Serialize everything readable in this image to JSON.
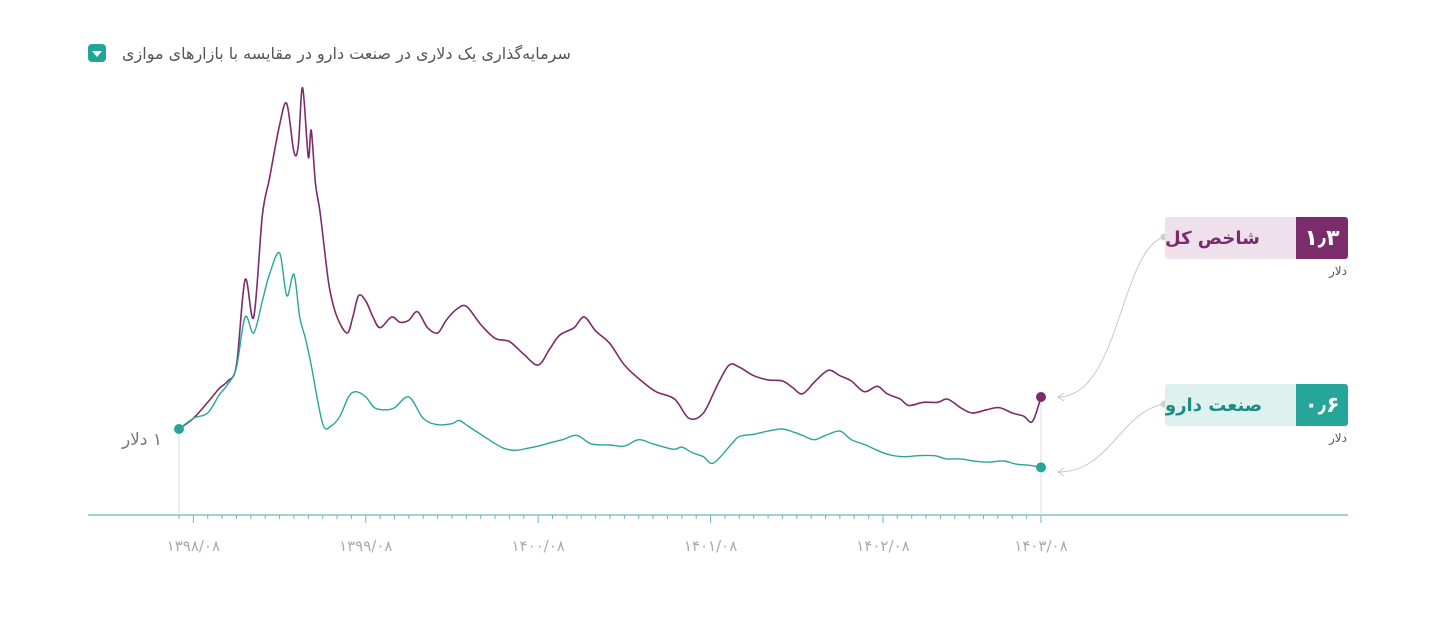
{
  "title": "سرمایه‌گذاری یک دلاری در صنعت دارو در مقایسه با بازارهای موازی",
  "start_label": "۱ دلار",
  "colors": {
    "index": "#7b2c6b",
    "pharma": "#26a69a",
    "index_bg": "#efe1eb",
    "pharma_bg": "#dff1ef",
    "axis": "#6cb8b4",
    "tick_text": "#aaaaaa"
  },
  "labels": [
    {
      "key": "index",
      "name": "شاخص کل",
      "value": "۱٫۳",
      "unit": "دلار"
    },
    {
      "key": "pharma",
      "name": "صنعت دارو",
      "value": "۰٫۶",
      "unit": "دلار"
    }
  ],
  "chart_data": {
    "type": "line",
    "x_ticks": [
      "۱۳۹۸/۰۸",
      "۱۳۹۹/۰۸",
      "۱۴۰۰/۰۸",
      "۱۴۰۱/۰۸",
      "۱۴۰۲/۰۸",
      "۱۴۰۳/۰۸"
    ],
    "x_range": [
      0,
      60
    ],
    "y_range": [
      0.4,
      4.3
    ],
    "series": [
      {
        "name": "شاخص کل",
        "color": "#7b2c6b",
        "x": [
          0,
          1,
          2,
          2.8,
          3.4,
          4,
          4.6,
          5.2,
          5.8,
          6.3,
          7,
          7.5,
          8,
          8.3,
          8.6,
          9,
          9.2,
          9.5,
          9.8,
          10.2,
          10.5,
          11,
          11.7,
          12.1,
          12.5,
          13,
          13.5,
          14,
          14.8,
          15.4,
          16,
          16.6,
          17.3,
          18,
          18.6,
          19.3,
          20,
          21,
          22,
          23,
          24,
          25,
          25.8,
          26.5,
          27.5,
          28.2,
          29,
          30,
          31,
          32.2,
          33.2,
          34.5,
          35.5,
          36.5,
          37.5,
          38.3,
          39,
          40,
          41,
          42,
          42.7,
          43.4,
          44.3,
          45.2,
          46,
          46.8,
          47.7,
          48.6,
          49.3,
          50.2,
          50.8,
          51.8,
          52.8,
          53.5,
          54.4,
          55.2,
          56.2,
          57.1,
          58,
          58.8,
          59.4,
          60
        ],
        "y": [
          1,
          1.1,
          1.25,
          1.38,
          1.45,
          1.6,
          2.4,
          2.05,
          3,
          3.35,
          3.85,
          4.05,
          3.6,
          3.65,
          4.2,
          3.55,
          3.8,
          3.3,
          3.05,
          2.6,
          2.3,
          2.05,
          1.9,
          2.05,
          2.25,
          2.2,
          2.05,
          1.95,
          2.05,
          2.0,
          2.02,
          2.1,
          1.95,
          1.9,
          2.02,
          2.12,
          2.15,
          1.98,
          1.85,
          1.82,
          1.7,
          1.6,
          1.75,
          1.88,
          1.95,
          2.05,
          1.92,
          1.8,
          1.6,
          1.45,
          1.35,
          1.28,
          1.1,
          1.15,
          1.42,
          1.6,
          1.58,
          1.5,
          1.46,
          1.45,
          1.39,
          1.33,
          1.45,
          1.55,
          1.5,
          1.45,
          1.35,
          1.4,
          1.33,
          1.28,
          1.22,
          1.25,
          1.25,
          1.28,
          1.2,
          1.15,
          1.18,
          1.2,
          1.15,
          1.12,
          1.07,
          1.3
        ]
      },
      {
        "name": "صنعت دارو",
        "color": "#26a69a",
        "x": [
          0,
          1,
          2,
          2.8,
          3.4,
          4,
          4.6,
          5.2,
          5.8,
          6.3,
          7,
          7.5,
          8,
          8.4,
          8.8,
          9.2,
          10,
          10.6,
          11.2,
          11.8,
          12.3,
          13,
          13.6,
          14.3,
          15,
          16,
          17,
          18,
          19,
          19.5,
          20.2,
          21,
          21.8,
          22.6,
          23.4,
          24.3,
          25,
          25.8,
          26.7,
          27.7,
          28.7,
          30,
          31,
          32,
          33,
          34.4,
          35,
          35.7,
          36.5,
          37.2,
          38.4,
          39,
          40,
          41,
          42,
          42.8,
          43.4,
          44.2,
          45,
          46,
          46.8,
          47.8,
          48.6,
          49.4,
          50.5,
          51.5,
          52.6,
          53.4,
          54.4,
          55.3,
          56.3,
          57.4,
          58.3,
          59.2,
          60
        ],
        "y": [
          1,
          1.1,
          1.15,
          1.32,
          1.42,
          1.58,
          2.05,
          1.9,
          2.2,
          2.45,
          2.65,
          2.25,
          2.45,
          2.05,
          1.85,
          1.6,
          1.05,
          1.03,
          1.12,
          1.3,
          1.35,
          1.3,
          1.2,
          1.18,
          1.2,
          1.3,
          1.1,
          1.04,
          1.05,
          1.08,
          1.02,
          0.95,
          0.88,
          0.82,
          0.8,
          0.82,
          0.84,
          0.87,
          0.9,
          0.94,
          0.86,
          0.85,
          0.84,
          0.9,
          0.86,
          0.81,
          0.83,
          0.78,
          0.74,
          0.68,
          0.85,
          0.93,
          0.95,
          0.98,
          1.0,
          0.97,
          0.94,
          0.9,
          0.94,
          0.98,
          0.9,
          0.85,
          0.8,
          0.76,
          0.74,
          0.75,
          0.75,
          0.72,
          0.72,
          0.7,
          0.69,
          0.7,
          0.67,
          0.66,
          0.64
        ]
      }
    ]
  }
}
